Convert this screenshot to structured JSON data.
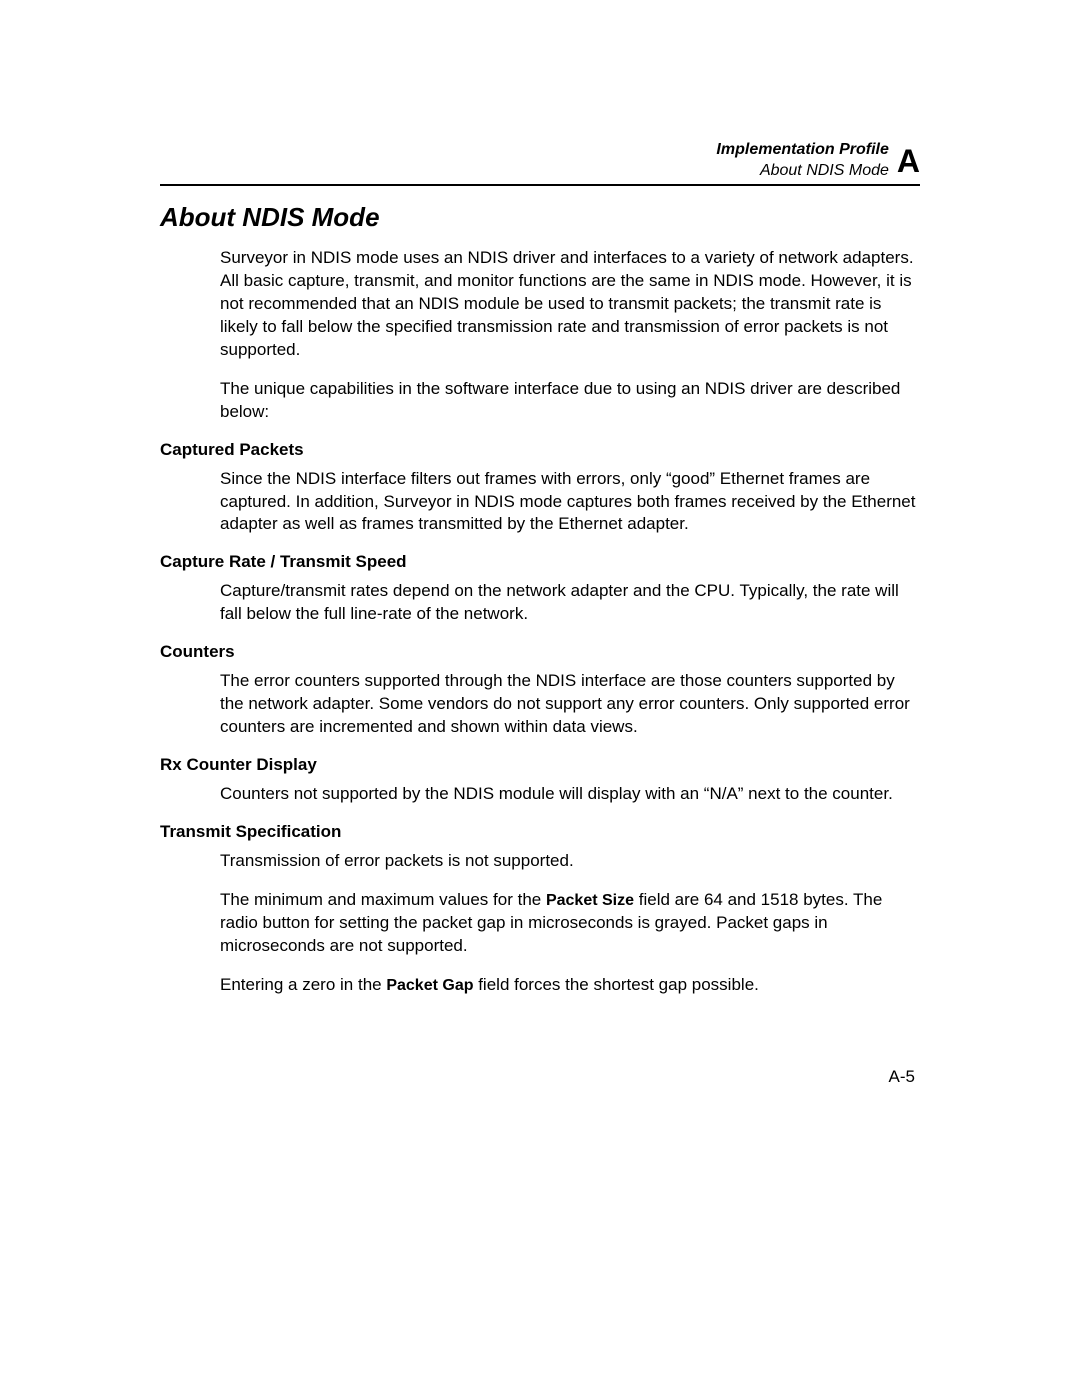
{
  "header": {
    "line1": "Implementation Profile",
    "line2": "About NDIS Mode",
    "appendix": "A"
  },
  "main_heading": "About NDIS Mode",
  "intro_p1": "Surveyor in NDIS mode uses an NDIS driver and interfaces to a variety of network adapters. All basic capture, transmit, and monitor functions are the same in NDIS mode. However, it is not recommended that an NDIS module be used to transmit packets; the transmit rate is likely to fall below the specified transmission rate and transmission of error packets is not supported.",
  "intro_p2": "The unique capabilities in the software interface due to using an NDIS driver are described below:",
  "sections": {
    "captured_packets": {
      "heading": "Captured Packets",
      "body": "Since the NDIS interface filters out frames with errors, only “good” Ethernet frames are captured. In addition, Surveyor in NDIS mode captures both frames received by the Ethernet adapter as well as frames transmitted by the Ethernet adapter."
    },
    "capture_rate": {
      "heading": "Capture Rate / Transmit Speed",
      "body": "Capture/transmit rates depend on the network adapter and the CPU. Typically, the rate will fall below the full line-rate of the network."
    },
    "counters": {
      "heading": "Counters",
      "body": "The error counters supported through the NDIS interface are those counters supported by the network adapter. Some vendors do not support any error counters. Only supported error counters are incremented and shown within data views."
    },
    "rx_counter": {
      "heading": "Rx Counter Display",
      "body": "Counters not supported by the NDIS module will display with an “N/A” next to the counter."
    },
    "transmit_spec": {
      "heading": "Transmit Specification",
      "p1": "Transmission of error packets is not supported.",
      "p2_pre": "The minimum and maximum values for the ",
      "p2_bold": "Packet Size",
      "p2_post": " field are 64 and 1518 bytes. The radio button for setting the packet gap in microseconds is grayed. Packet gaps in microseconds are not supported.",
      "p3_pre": "Entering a zero in the ",
      "p3_bold": "Packet Gap",
      "p3_post": " field forces the shortest gap possible."
    }
  },
  "page_number": "A-5"
}
